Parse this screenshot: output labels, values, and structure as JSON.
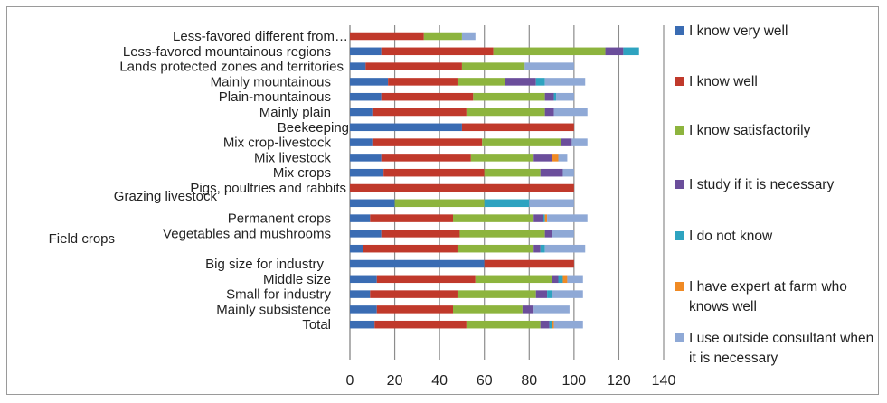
{
  "chart_data": {
    "type": "bar",
    "orientation": "horizontal",
    "stacked": true,
    "title": "",
    "xlabel": "",
    "ylabel": "",
    "xlim": [
      0,
      140
    ],
    "xticks": [
      0,
      20,
      40,
      60,
      80,
      100,
      120,
      140
    ],
    "grid": "vertical",
    "legend_position": "right",
    "categories": [
      "Less-favored different from…",
      "Less-favored mountainous regions",
      "Lands protected zones and territories",
      "Mainly mountainous",
      "Plain-mountainous",
      "Mainly plain",
      "Beekeeping",
      "Mix crop-livestock",
      "Mix livestock",
      "Mix crops",
      "Pigs, poultries and rabbits",
      "Grazing livestock",
      "Permanent crops",
      "Vegetables and mushrooms",
      "Field crops",
      "Big size for industry",
      "Middle size",
      "Small for industry",
      "Mainly subsistence",
      "Total"
    ],
    "series": [
      {
        "name": "I know very well",
        "color": "#3a6cb3",
        "values": [
          0,
          14,
          7,
          17,
          14,
          10,
          50,
          10,
          14,
          15,
          0,
          20,
          9,
          14,
          6,
          60,
          12,
          9,
          12,
          11
        ]
      },
      {
        "name": "I know well",
        "color": "#c0392b",
        "values": [
          33,
          50,
          43,
          31,
          41,
          42,
          50,
          49,
          40,
          45,
          100,
          0,
          37,
          35,
          42,
          40,
          44,
          39,
          34,
          41
        ]
      },
      {
        "name": "I know satisfactorily",
        "color": "#8db43e",
        "values": [
          17,
          50,
          28,
          21,
          32,
          35,
          0,
          35,
          28,
          25,
          0,
          40,
          36,
          38,
          34,
          0,
          34,
          35,
          31,
          33
        ]
      },
      {
        "name": "I study if it is necessary",
        "color": "#6b4e9b",
        "values": [
          0,
          8,
          0,
          14,
          4,
          4,
          0,
          5,
          8,
          10,
          0,
          0,
          4,
          3,
          3,
          0,
          3,
          5,
          5,
          4
        ]
      },
      {
        "name": "I do not know",
        "color": "#2ea3c0",
        "values": [
          0,
          7,
          0,
          4,
          1,
          0,
          0,
          0,
          0,
          0,
          0,
          20,
          1,
          0,
          2,
          0,
          2,
          2,
          0,
          1
        ]
      },
      {
        "name": "I have expert at farm who knows well",
        "color": "#f08a24",
        "values": [
          0,
          0,
          0,
          0,
          0,
          0,
          0,
          0,
          3,
          0,
          0,
          0,
          1,
          0,
          0,
          0,
          2,
          0,
          0,
          1
        ]
      },
      {
        "name": "I use outside consultant when it is necessary",
        "color": "#8fa9d6",
        "values": [
          6,
          0,
          22,
          18,
          8,
          15,
          0,
          7,
          4,
          5,
          0,
          20,
          18,
          10,
          18,
          0,
          7,
          14,
          16,
          13
        ]
      }
    ]
  }
}
